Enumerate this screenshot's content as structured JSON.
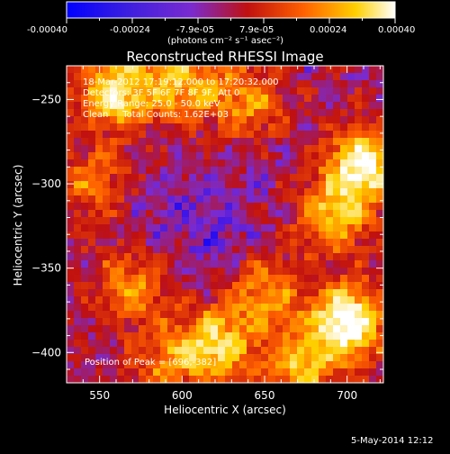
{
  "colorbar": {
    "tick_labels": [
      "-0.00040",
      "-0.00024",
      "-7.9e-05",
      "7.9e-05",
      "0.00024",
      "0.00040"
    ],
    "units_label": "(photons cm⁻² s⁻¹ asec⁻²)"
  },
  "image_info": {
    "line1": "18-Mar-2012 17:19:12.000 to 17:20:32.000",
    "line2": "Detectors: 3F 5F 6F 7F 8F 9F, Att 0",
    "line3": "Energy Range: 25.0 - 50.0 keV",
    "line4": "Clean     Total Counts: 1.62E+03"
  },
  "peak_text": "Position of Peak = [696,-382]",
  "timestamp": "5-May-2014 12:12",
  "chart_data": {
    "type": "heatmap",
    "title": "Reconstructed RHESSI Image",
    "xlabel": "Heliocentric X (arcsec)",
    "ylabel": "Heliocentric Y (arcsec)",
    "xlim": [
      530,
      722
    ],
    "ylim": [
      -418,
      -230
    ],
    "x_ticks": [
      550,
      600,
      650,
      700
    ],
    "y_ticks": [
      -250,
      -300,
      -350,
      -400
    ],
    "x_tick_labels": [
      "550",
      "600",
      "650",
      "700"
    ],
    "y_tick_labels": [
      "−250",
      "−300",
      "−350",
      "−400"
    ],
    "color_range": [
      -0.0004,
      0.0004
    ],
    "colormap": "rhessi_blue_purple_red_yellow_white",
    "colormap_stops": [
      "#0000ff",
      "#7a2bd0",
      "#c01010",
      "#ff6000",
      "#ffd000",
      "#ffffff"
    ],
    "peak_position": [
      696,
      -382
    ],
    "hot_regions": [
      {
        "x": 560,
        "y": -245,
        "level": 0.8
      },
      {
        "x": 600,
        "y": -240,
        "level": 0.6
      },
      {
        "x": 640,
        "y": -250,
        "level": 0.5
      },
      {
        "x": 545,
        "y": -300,
        "level": 0.4
      },
      {
        "x": 710,
        "y": -290,
        "level": 0.9
      },
      {
        "x": 690,
        "y": -320,
        "level": 0.6
      },
      {
        "x": 700,
        "y": -382,
        "level": 1.0
      },
      {
        "x": 620,
        "y": -395,
        "level": 0.7
      },
      {
        "x": 570,
        "y": -360,
        "level": 0.5
      },
      {
        "x": 650,
        "y": -365,
        "level": 0.5
      },
      {
        "x": 590,
        "y": -405,
        "level": 0.4
      },
      {
        "x": 670,
        "y": -410,
        "level": 0.6
      }
    ]
  }
}
